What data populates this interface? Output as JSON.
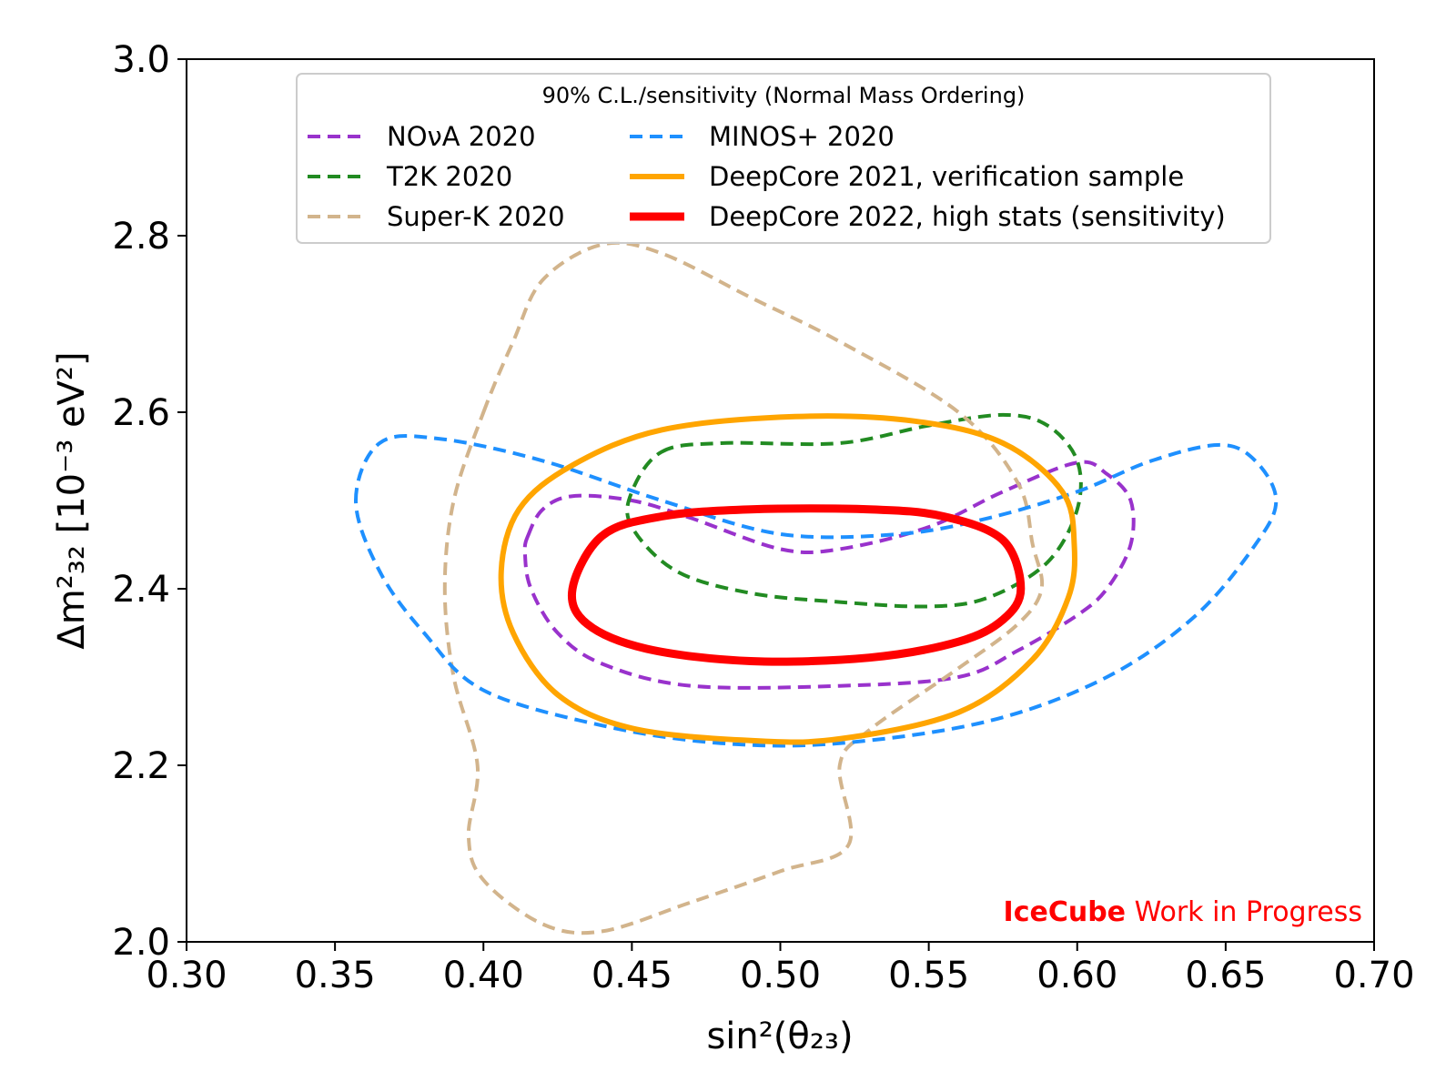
{
  "chart_data": {
    "type": "line",
    "title": "",
    "xlabel": "sin²(θ₂₃)",
    "ylabel": "Δm²₃₂ [10⁻³ eV²]",
    "xlim": [
      0.3,
      0.7
    ],
    "ylim": [
      2.0,
      3.0
    ],
    "x_ticks": [
      "0.30",
      "0.35",
      "0.40",
      "0.45",
      "0.50",
      "0.55",
      "0.60",
      "0.65",
      "0.70"
    ],
    "y_ticks": [
      "2.0",
      "2.2",
      "2.4",
      "2.6",
      "2.8",
      "3.0"
    ],
    "grid": false,
    "legend": {
      "title": "90% C.L./sensitivity (Normal Mass Ordering)",
      "placement": "upper-center"
    },
    "watermark": {
      "bold": "IceCube",
      "text": "Work in Progress"
    },
    "series": [
      {
        "name": "NOνA 2020",
        "color": "#9932cc",
        "style": "dashed",
        "points": [
          [
            0.415,
            2.46
          ],
          [
            0.42,
            2.49
          ],
          [
            0.43,
            2.505
          ],
          [
            0.45,
            2.5
          ],
          [
            0.47,
            2.48
          ],
          [
            0.5,
            2.445
          ],
          [
            0.52,
            2.445
          ],
          [
            0.55,
            2.47
          ],
          [
            0.575,
            2.51
          ],
          [
            0.6,
            2.543
          ],
          [
            0.61,
            2.53
          ],
          [
            0.618,
            2.5
          ],
          [
            0.618,
            2.45
          ],
          [
            0.61,
            2.4
          ],
          [
            0.6,
            2.37
          ],
          [
            0.58,
            2.33
          ],
          [
            0.56,
            2.3
          ],
          [
            0.52,
            2.29
          ],
          [
            0.47,
            2.29
          ],
          [
            0.44,
            2.315
          ],
          [
            0.425,
            2.35
          ],
          [
            0.416,
            2.4
          ],
          [
            0.414,
            2.44
          ],
          [
            0.415,
            2.46
          ]
        ]
      },
      {
        "name": "T2K 2020",
        "color": "#228b22",
        "style": "dashed",
        "points": [
          [
            0.46,
            2.555
          ],
          [
            0.48,
            2.565
          ],
          [
            0.52,
            2.565
          ],
          [
            0.55,
            2.585
          ],
          [
            0.575,
            2.597
          ],
          [
            0.59,
            2.585
          ],
          [
            0.6,
            2.545
          ],
          [
            0.6,
            2.49
          ],
          [
            0.59,
            2.43
          ],
          [
            0.57,
            2.39
          ],
          [
            0.55,
            2.38
          ],
          [
            0.52,
            2.385
          ],
          [
            0.49,
            2.395
          ],
          [
            0.465,
            2.42
          ],
          [
            0.45,
            2.47
          ],
          [
            0.45,
            2.51
          ],
          [
            0.46,
            2.555
          ]
        ]
      },
      {
        "name": "Super-K 2020",
        "color": "#d2b48c",
        "style": "dashed",
        "points": [
          [
            0.4,
            2.6
          ],
          [
            0.41,
            2.68
          ],
          [
            0.42,
            2.75
          ],
          [
            0.44,
            2.79
          ],
          [
            0.46,
            2.78
          ],
          [
            0.49,
            2.73
          ],
          [
            0.52,
            2.68
          ],
          [
            0.56,
            2.6
          ],
          [
            0.58,
            2.52
          ],
          [
            0.585,
            2.45
          ],
          [
            0.588,
            2.4
          ],
          [
            0.58,
            2.36
          ],
          [
            0.56,
            2.31
          ],
          [
            0.53,
            2.24
          ],
          [
            0.52,
            2.2
          ],
          [
            0.523,
            2.11
          ],
          [
            0.5,
            2.08
          ],
          [
            0.47,
            2.045
          ],
          [
            0.44,
            2.012
          ],
          [
            0.42,
            2.02
          ],
          [
            0.4,
            2.07
          ],
          [
            0.395,
            2.12
          ],
          [
            0.398,
            2.2
          ],
          [
            0.39,
            2.3
          ],
          [
            0.387,
            2.4
          ],
          [
            0.39,
            2.5
          ],
          [
            0.4,
            2.6
          ]
        ]
      },
      {
        "name": "MINOS+ 2020",
        "color": "#1e90ff",
        "style": "dashed",
        "points": [
          [
            0.357,
            2.5
          ],
          [
            0.365,
            2.565
          ],
          [
            0.385,
            2.57
          ],
          [
            0.42,
            2.545
          ],
          [
            0.46,
            2.5
          ],
          [
            0.5,
            2.462
          ],
          [
            0.54,
            2.462
          ],
          [
            0.57,
            2.48
          ],
          [
            0.6,
            2.51
          ],
          [
            0.625,
            2.545
          ],
          [
            0.648,
            2.563
          ],
          [
            0.66,
            2.545
          ],
          [
            0.667,
            2.5
          ],
          [
            0.66,
            2.45
          ],
          [
            0.64,
            2.37
          ],
          [
            0.61,
            2.3
          ],
          [
            0.57,
            2.25
          ],
          [
            0.52,
            2.225
          ],
          [
            0.48,
            2.225
          ],
          [
            0.44,
            2.245
          ],
          [
            0.4,
            2.285
          ],
          [
            0.38,
            2.35
          ],
          [
            0.365,
            2.42
          ],
          [
            0.357,
            2.5
          ]
        ]
      },
      {
        "name": "DeepCore 2021, verification sample",
        "color": "#ffa500",
        "style": "solid",
        "points": [
          [
            0.43,
            2.54
          ],
          [
            0.46,
            2.58
          ],
          [
            0.505,
            2.595
          ],
          [
            0.545,
            2.59
          ],
          [
            0.575,
            2.565
          ],
          [
            0.595,
            2.51
          ],
          [
            0.599,
            2.45
          ],
          [
            0.597,
            2.39
          ],
          [
            0.585,
            2.32
          ],
          [
            0.56,
            2.26
          ],
          [
            0.52,
            2.23
          ],
          [
            0.49,
            2.228
          ],
          [
            0.45,
            2.242
          ],
          [
            0.425,
            2.28
          ],
          [
            0.41,
            2.35
          ],
          [
            0.406,
            2.42
          ],
          [
            0.412,
            2.49
          ],
          [
            0.43,
            2.54
          ]
        ]
      },
      {
        "name": "DeepCore 2022, high stats (sensitivity)",
        "color": "#ff0000",
        "style": "solid",
        "points": [
          [
            0.44,
            2.46
          ],
          [
            0.46,
            2.482
          ],
          [
            0.49,
            2.49
          ],
          [
            0.53,
            2.49
          ],
          [
            0.555,
            2.482
          ],
          [
            0.575,
            2.455
          ],
          [
            0.581,
            2.4
          ],
          [
            0.575,
            2.365
          ],
          [
            0.56,
            2.34
          ],
          [
            0.53,
            2.322
          ],
          [
            0.49,
            2.318
          ],
          [
            0.455,
            2.332
          ],
          [
            0.435,
            2.36
          ],
          [
            0.43,
            2.4
          ],
          [
            0.44,
            2.46
          ]
        ]
      }
    ]
  }
}
